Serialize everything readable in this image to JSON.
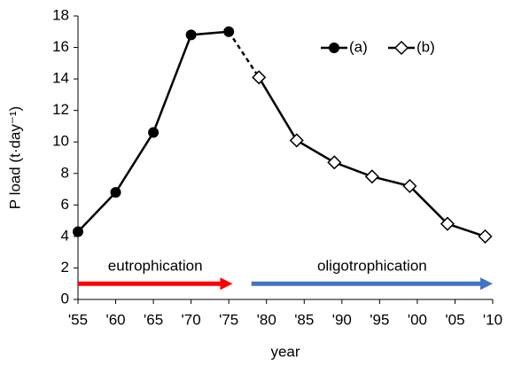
{
  "chart_data": {
    "type": "line",
    "xlabel": "year",
    "ylabel": "P load (t·day⁻¹)",
    "xlim": [
      1955,
      2010
    ],
    "xticks": [
      {
        "value": 1955,
        "label": "'55"
      },
      {
        "value": 1960,
        "label": "'60"
      },
      {
        "value": 1965,
        "label": "'65"
      },
      {
        "value": 1970,
        "label": "'70"
      },
      {
        "value": 1975,
        "label": "'75"
      },
      {
        "value": 1980,
        "label": "'80"
      },
      {
        "value": 1985,
        "label": "'85"
      },
      {
        "value": 1990,
        "label": "'90"
      },
      {
        "value": 1995,
        "label": "'95"
      },
      {
        "value": 2000,
        "label": "'00"
      },
      {
        "value": 2005,
        "label": "'05"
      },
      {
        "value": 2010,
        "label": "'10"
      }
    ],
    "ylim": [
      0,
      18
    ],
    "yticks": [
      0,
      2,
      4,
      6,
      8,
      10,
      12,
      14,
      16,
      18
    ],
    "grid": false,
    "legend": "top-right",
    "series": [
      {
        "name": "(a)",
        "color": "#000000",
        "marker": "circle",
        "x": [
          1955,
          1960,
          1965,
          1970,
          1975
        ],
        "values": [
          4.3,
          6.8,
          10.6,
          16.8,
          17.0
        ]
      },
      {
        "name": "(b)",
        "color": "#000000",
        "marker": "diamond",
        "x": [
          1979,
          1984,
          1989,
          1994,
          1999,
          2004,
          2009
        ],
        "values": [
          14.1,
          10.1,
          8.7,
          7.8,
          7.2,
          4.8,
          4.0
        ]
      }
    ],
    "annotations": [
      {
        "text": "eutrophication",
        "color": "#ff0000",
        "x": [
          1955,
          1975.5
        ],
        "y": 1
      },
      {
        "text": "oligotrophication",
        "color": "#4472c4",
        "x": [
          1978,
          2010
        ],
        "y": 1
      }
    ]
  }
}
